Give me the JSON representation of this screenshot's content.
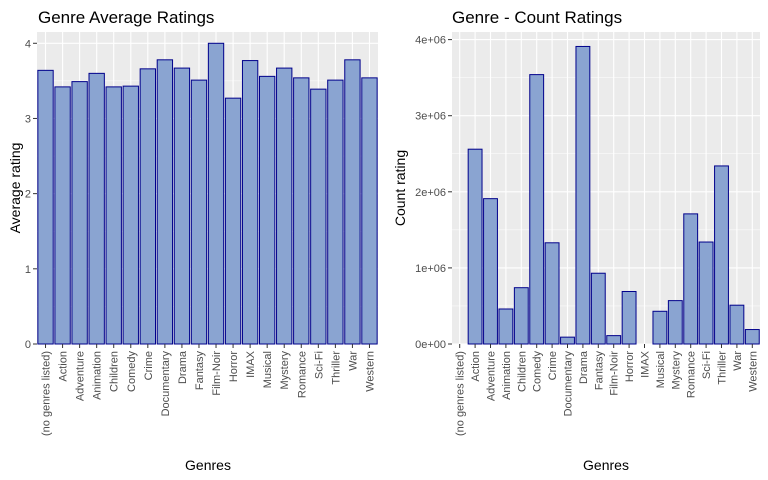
{
  "chart_data": [
    {
      "type": "bar",
      "title": "Genre Average Ratings",
      "xlabel": "Genres",
      "ylabel": "Average rating",
      "ylim": [
        0,
        4.15
      ],
      "yticks": [
        0,
        1,
        2,
        3,
        4
      ],
      "ytick_labels": [
        "0",
        "1",
        "2",
        "3",
        "4"
      ],
      "grid": true,
      "categories": [
        "(no genres listed)",
        "Action",
        "Adventure",
        "Animation",
        "Children",
        "Comedy",
        "Crime",
        "Documentary",
        "Drama",
        "Fantasy",
        "Film-Noir",
        "Horror",
        "IMAX",
        "Musical",
        "Mystery",
        "Romance",
        "Sci-Fi",
        "Thriller",
        "War",
        "Western"
      ],
      "values": [
        3.64,
        3.42,
        3.49,
        3.6,
        3.42,
        3.43,
        3.66,
        3.78,
        3.67,
        3.51,
        4.0,
        3.27,
        3.77,
        3.56,
        3.67,
        3.54,
        3.39,
        3.51,
        3.78,
        3.54
      ],
      "colors": {
        "fill": "#8aa4d1",
        "stroke": "#00008b",
        "panel": "#ebebeb",
        "grid": "#ffffff"
      }
    },
    {
      "type": "bar",
      "title": "Genre - Count Ratings",
      "xlabel": "Genres",
      "ylabel": "Count rating",
      "ylim": [
        0,
        4100000
      ],
      "yticks": [
        0,
        1000000,
        2000000,
        3000000,
        4000000
      ],
      "ytick_labels": [
        "0e+00",
        "1e+06",
        "2e+06",
        "3e+06",
        "4e+06"
      ],
      "grid": true,
      "categories": [
        "(no genres listed)",
        "Action",
        "Adventure",
        "Animation",
        "Children",
        "Comedy",
        "Crime",
        "Documentary",
        "Drama",
        "Fantasy",
        "Film-Noir",
        "Horror",
        "IMAX",
        "Musical",
        "Mystery",
        "Romance",
        "Sci-Fi",
        "Thriller",
        "War",
        "Western"
      ],
      "values": [
        0,
        2560000,
        1910000,
        460000,
        740000,
        3540000,
        1330000,
        90000,
        3910000,
        930000,
        110000,
        690000,
        0,
        430000,
        570000,
        1710000,
        1340000,
        2340000,
        510000,
        190000
      ],
      "colors": {
        "fill": "#8aa4d1",
        "stroke": "#00008b",
        "panel": "#ebebeb",
        "grid": "#ffffff"
      }
    }
  ]
}
